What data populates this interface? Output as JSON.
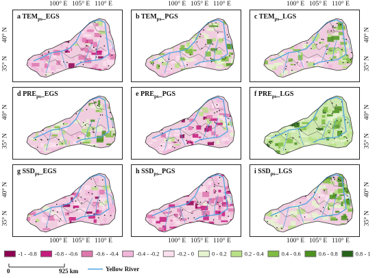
{
  "top_axis": [
    "100° E",
    "105° E",
    "110° E"
  ],
  "bottom_axis": [
    "100° E",
    "105° E",
    "110° E"
  ],
  "lat_labels": [
    "40° N",
    "35° N"
  ],
  "panels": [
    {
      "letter": "a",
      "var": "TEM",
      "sub": "ps",
      "stage": "EGS",
      "tone": "neg"
    },
    {
      "letter": "b",
      "var": "TEM",
      "sub": "ps",
      "stage": "PGS",
      "tone": "mix"
    },
    {
      "letter": "c",
      "var": "TEM",
      "sub": "ps",
      "stage": "LGS",
      "tone": "mix"
    },
    {
      "letter": "d",
      "var": "PRE",
      "sub": "ps",
      "stage": "EGS",
      "tone": "mix"
    },
    {
      "letter": "e",
      "var": "PRE",
      "sub": "ps",
      "stage": "PGS",
      "tone": "neg"
    },
    {
      "letter": "f",
      "var": "PRE",
      "sub": "ps",
      "stage": "LGS",
      "tone": "pos"
    },
    {
      "letter": "g",
      "var": "SSD",
      "sub": "ps",
      "stage": "EGS",
      "tone": "neg"
    },
    {
      "letter": "h",
      "var": "SSD",
      "sub": "ps",
      "stage": "PGS",
      "tone": "strongneg"
    },
    {
      "letter": "i",
      "var": "SSD",
      "sub": "ps",
      "stage": "LGS",
      "tone": "mix"
    }
  ],
  "legend": [
    {
      "label": "-1 - -0.8",
      "color": "#8e0152"
    },
    {
      "label": "-0.8 - -0.6",
      "color": "#c51b7d"
    },
    {
      "label": "-0.6 - -0.4",
      "color": "#de77ae"
    },
    {
      "label": "-0.4 - -0.2",
      "color": "#f1b6da"
    },
    {
      "label": "-0.2 - 0",
      "color": "#fde0ef"
    },
    {
      "label": "0 - 0.2",
      "color": "#e6f5d0"
    },
    {
      "label": "0.2 - 0.4",
      "color": "#b8e186"
    },
    {
      "label": "0.4 - 0.6",
      "color": "#7fbc41"
    },
    {
      "label": "0.6 - 0.8",
      "color": "#4d9221"
    },
    {
      "label": "0.8 - 1",
      "color": "#276419"
    }
  ],
  "scale": {
    "left": "0",
    "right": "925 km"
  },
  "river_label": "Yellow River",
  "colors": {
    "river": "#4fa3e0",
    "boundary": "#333333"
  }
}
